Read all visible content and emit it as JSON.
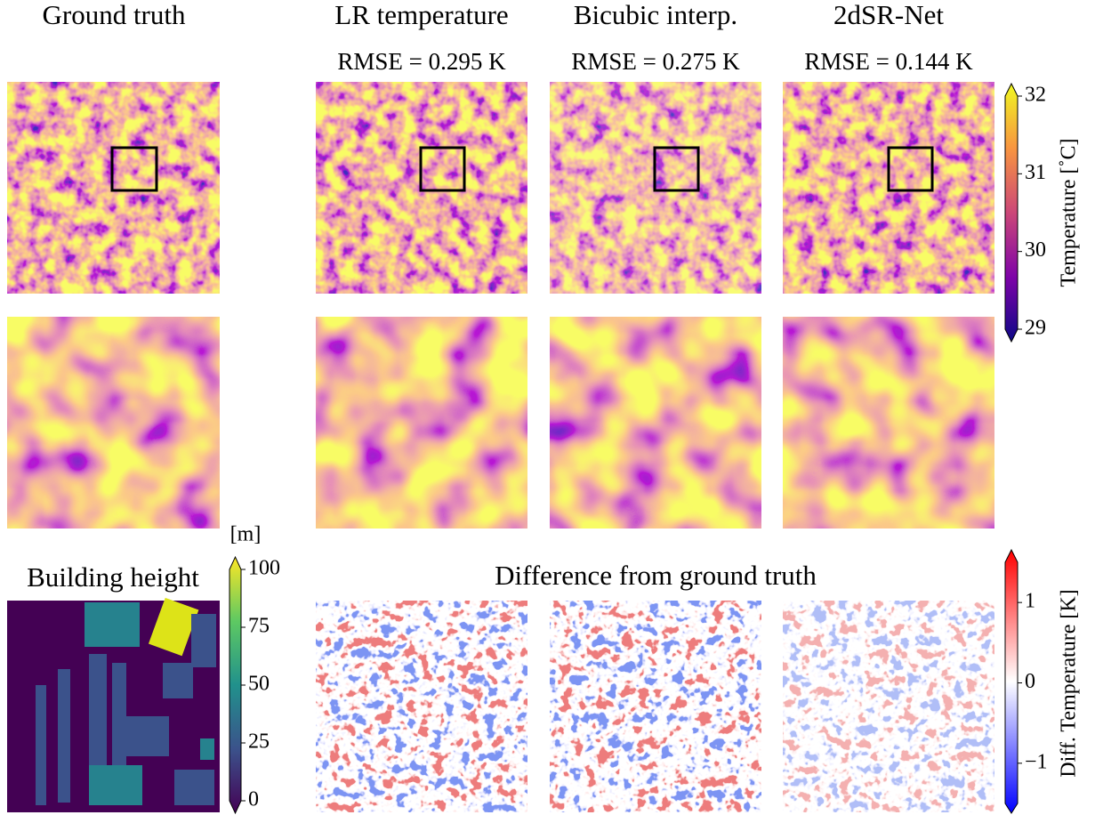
{
  "columns": [
    {
      "title": "Ground truth"
    },
    {
      "title": "LR temperature",
      "rmse": "RMSE = 0.295 K"
    },
    {
      "title": "Bicubic interp.",
      "rmse": "RMSE = 0.275 K"
    },
    {
      "title": "2dSR-Net",
      "rmse": "RMSE = 0.144 K"
    }
  ],
  "building_panel": {
    "title": "Building height"
  },
  "difference_title": "Difference from ground truth",
  "colorbars": {
    "temperature": {
      "label": "Temperature [˚C]",
      "lim": [
        29,
        32
      ],
      "ticks": [
        29,
        30,
        31,
        32
      ]
    },
    "height": {
      "unit": "[m]",
      "lim": [
        0,
        100
      ],
      "ticks": [
        0,
        25,
        50,
        75,
        100
      ]
    },
    "difference": {
      "label": "Diff. Temperature [K]",
      "lim": [
        -1.5,
        1.5
      ],
      "ticks": [
        {
          "value": -1,
          "label": "−1"
        },
        0,
        1
      ]
    }
  }
}
